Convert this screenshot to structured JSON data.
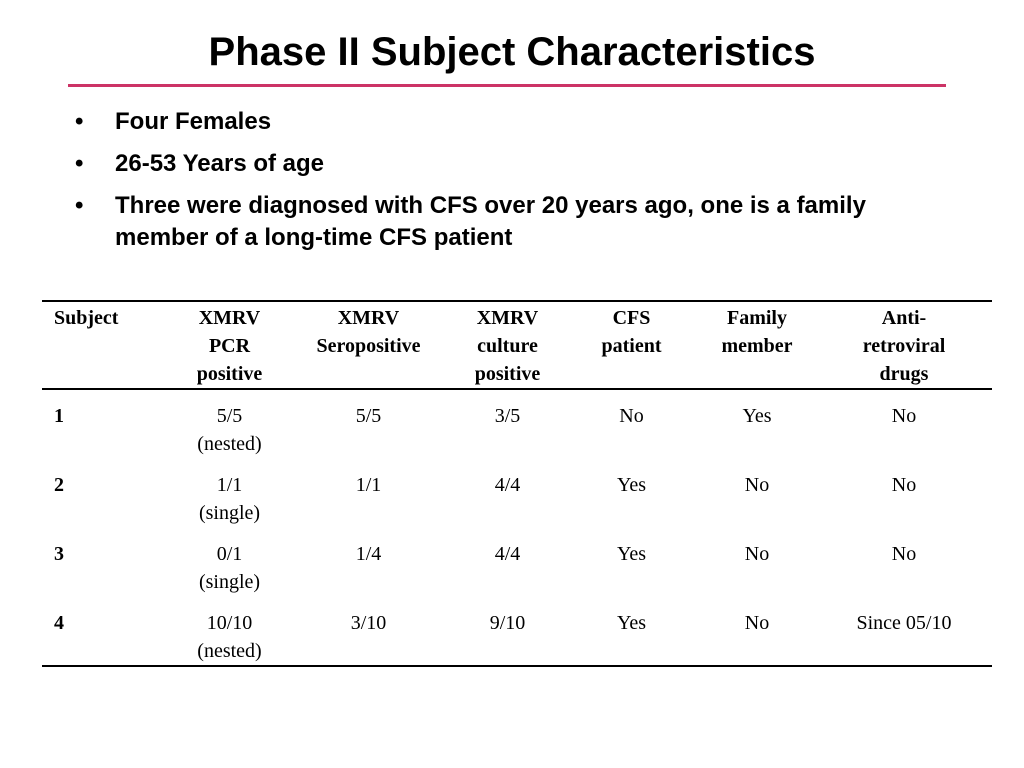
{
  "slide": {
    "title": "Phase II Subject Characteristics",
    "accent_color": "#cc3366",
    "bullets": [
      "Four Females",
      "26-53 Years of age",
      "Three were diagnosed with CFS over 20 years ago, one is a family member of a long-time CFS patient"
    ],
    "bullet_symbol": "•"
  },
  "table": {
    "headers": [
      [
        "Subject"
      ],
      [
        "XMRV",
        "PCR",
        "positive"
      ],
      [
        "XMRV",
        "Seropositive"
      ],
      [
        "XMRV",
        "culture",
        "positive"
      ],
      [
        "CFS",
        "patient"
      ],
      [
        "Family",
        "member"
      ],
      [
        "Anti-",
        "retroviral",
        "drugs"
      ]
    ],
    "rows": [
      {
        "subject": "1",
        "pcr": [
          "5/5",
          "(nested)"
        ],
        "sero": "5/5",
        "culture": "3/5",
        "cfs": "No",
        "family": "Yes",
        "arv": "No"
      },
      {
        "subject": "2",
        "pcr": [
          "1/1",
          "(single)"
        ],
        "sero": "1/1",
        "culture": "4/4",
        "cfs": "Yes",
        "family": "No",
        "arv": "No"
      },
      {
        "subject": "3",
        "pcr": [
          "0/1",
          "(single)"
        ],
        "sero": "1/4",
        "culture": "4/4",
        "cfs": "Yes",
        "family": "No",
        "arv": "No"
      },
      {
        "subject": "4",
        "pcr": [
          "10/10",
          "(nested)"
        ],
        "sero": "3/10",
        "culture": "9/10",
        "cfs": "Yes",
        "family": "No",
        "arv": "Since 05/10"
      }
    ]
  }
}
